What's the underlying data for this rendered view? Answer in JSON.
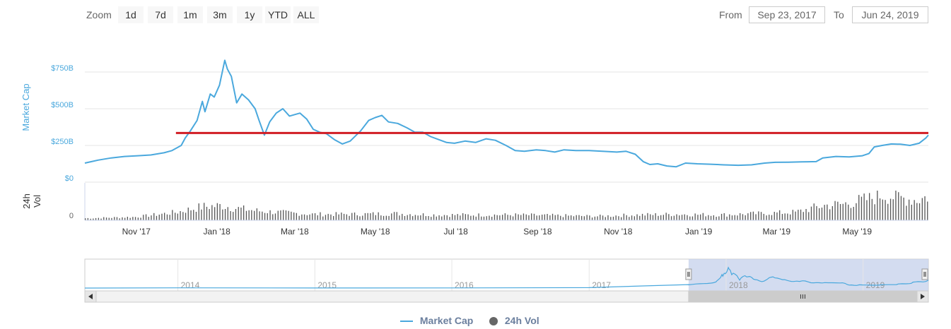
{
  "zoom": {
    "label": "Zoom",
    "buttons": [
      "1d",
      "7d",
      "1m",
      "3m",
      "1y",
      "YTD",
      "ALL"
    ]
  },
  "range": {
    "from_label": "From",
    "from_value": "Sep 23, 2017",
    "to_label": "To",
    "to_value": "Jun 24, 2019"
  },
  "colors": {
    "market_cap": "#4aa8dd",
    "reference_line": "#d11d24",
    "volume": "#555555",
    "navigator_mask": "#c8d3ec",
    "axis_text": "#606060"
  },
  "chart_data": {
    "type": "line",
    "title": "",
    "series": [
      {
        "name": "Market Cap",
        "unit": "USD billions",
        "points": [
          [
            "2017-09-23",
            130
          ],
          [
            "2017-10-03",
            150
          ],
          [
            "2017-10-13",
            165
          ],
          [
            "2017-10-23",
            175
          ],
          [
            "2017-11-02",
            180
          ],
          [
            "2017-11-12",
            185
          ],
          [
            "2017-11-22",
            200
          ],
          [
            "2017-11-28",
            215
          ],
          [
            "2017-12-05",
            250
          ],
          [
            "2017-12-08",
            300
          ],
          [
            "2017-12-12",
            350
          ],
          [
            "2017-12-17",
            420
          ],
          [
            "2017-12-21",
            550
          ],
          [
            "2017-12-23",
            480
          ],
          [
            "2017-12-27",
            600
          ],
          [
            "2017-12-30",
            580
          ],
          [
            "2018-01-03",
            660
          ],
          [
            "2018-01-07",
            830
          ],
          [
            "2018-01-09",
            770
          ],
          [
            "2018-01-12",
            720
          ],
          [
            "2018-01-16",
            540
          ],
          [
            "2018-01-20",
            600
          ],
          [
            "2018-01-25",
            560
          ],
          [
            "2018-01-30",
            500
          ],
          [
            "2018-02-02",
            420
          ],
          [
            "2018-02-06",
            320
          ],
          [
            "2018-02-10",
            410
          ],
          [
            "2018-02-15",
            470
          ],
          [
            "2018-02-20",
            500
          ],
          [
            "2018-02-25",
            450
          ],
          [
            "2018-03-01",
            460
          ],
          [
            "2018-03-05",
            470
          ],
          [
            "2018-03-10",
            430
          ],
          [
            "2018-03-15",
            360
          ],
          [
            "2018-03-20",
            340
          ],
          [
            "2018-03-25",
            330
          ],
          [
            "2018-03-31",
            290
          ],
          [
            "2018-04-06",
            260
          ],
          [
            "2018-04-12",
            280
          ],
          [
            "2018-04-20",
            350
          ],
          [
            "2018-04-26",
            420
          ],
          [
            "2018-05-01",
            440
          ],
          [
            "2018-05-06",
            455
          ],
          [
            "2018-05-11",
            410
          ],
          [
            "2018-05-18",
            400
          ],
          [
            "2018-05-25",
            370
          ],
          [
            "2018-05-31",
            340
          ],
          [
            "2018-06-06",
            340
          ],
          [
            "2018-06-12",
            310
          ],
          [
            "2018-06-18",
            290
          ],
          [
            "2018-06-24",
            270
          ],
          [
            "2018-06-30",
            265
          ],
          [
            "2018-07-08",
            280
          ],
          [
            "2018-07-16",
            270
          ],
          [
            "2018-07-24",
            295
          ],
          [
            "2018-07-31",
            285
          ],
          [
            "2018-08-08",
            250
          ],
          [
            "2018-08-15",
            215
          ],
          [
            "2018-08-22",
            210
          ],
          [
            "2018-08-31",
            220
          ],
          [
            "2018-09-07",
            215
          ],
          [
            "2018-09-14",
            205
          ],
          [
            "2018-09-21",
            220
          ],
          [
            "2018-09-30",
            215
          ],
          [
            "2018-10-10",
            215
          ],
          [
            "2018-10-20",
            210
          ],
          [
            "2018-10-31",
            205
          ],
          [
            "2018-11-07",
            210
          ],
          [
            "2018-11-14",
            190
          ],
          [
            "2018-11-20",
            140
          ],
          [
            "2018-11-25",
            120
          ],
          [
            "2018-12-01",
            125
          ],
          [
            "2018-12-08",
            110
          ],
          [
            "2018-12-15",
            105
          ],
          [
            "2018-12-22",
            130
          ],
          [
            "2018-12-31",
            125
          ],
          [
            "2019-01-10",
            122
          ],
          [
            "2019-01-20",
            118
          ],
          [
            "2019-01-31",
            115
          ],
          [
            "2019-02-10",
            118
          ],
          [
            "2019-02-20",
            130
          ],
          [
            "2019-02-28",
            135
          ],
          [
            "2019-03-10",
            136
          ],
          [
            "2019-03-20",
            138
          ],
          [
            "2019-03-31",
            140
          ],
          [
            "2019-04-05",
            165
          ],
          [
            "2019-04-15",
            175
          ],
          [
            "2019-04-25",
            172
          ],
          [
            "2019-05-05",
            180
          ],
          [
            "2019-05-10",
            195
          ],
          [
            "2019-05-14",
            240
          ],
          [
            "2019-05-20",
            250
          ],
          [
            "2019-05-27",
            260
          ],
          [
            "2019-06-03",
            258
          ],
          [
            "2019-06-10",
            250
          ],
          [
            "2019-06-17",
            265
          ],
          [
            "2019-06-22",
            300
          ],
          [
            "2019-06-24",
            320
          ]
        ]
      },
      {
        "name": "24h Vol",
        "unit": "relative",
        "points": [
          [
            "2017-09-23",
            3
          ],
          [
            "2017-11-01",
            5
          ],
          [
            "2017-12-01",
            12
          ],
          [
            "2017-12-20",
            20
          ],
          [
            "2018-01-05",
            22
          ],
          [
            "2018-01-15",
            18
          ],
          [
            "2018-02-01",
            14
          ],
          [
            "2018-02-15",
            12
          ],
          [
            "2018-03-15",
            9
          ],
          [
            "2018-04-15",
            9
          ],
          [
            "2018-05-15",
            10
          ],
          [
            "2018-06-15",
            8
          ],
          [
            "2018-07-15",
            8
          ],
          [
            "2018-08-15",
            8
          ],
          [
            "2018-09-15",
            7
          ],
          [
            "2018-10-15",
            6
          ],
          [
            "2018-11-15",
            8
          ],
          [
            "2018-12-15",
            9
          ],
          [
            "2019-01-15",
            8
          ],
          [
            "2019-02-15",
            10
          ],
          [
            "2019-03-15",
            12
          ],
          [
            "2019-04-05",
            22
          ],
          [
            "2019-04-20",
            24
          ],
          [
            "2019-05-10",
            32
          ],
          [
            "2019-05-20",
            38
          ],
          [
            "2019-06-01",
            34
          ],
          [
            "2019-06-15",
            30
          ],
          [
            "2019-06-24",
            36
          ]
        ]
      }
    ],
    "y_axis": {
      "title": "Market Cap",
      "ticks": [
        "$0",
        "$250B",
        "$500B",
        "$750B"
      ],
      "tick_values": [
        0,
        250,
        500,
        750
      ],
      "ylim": [
        0,
        850
      ]
    },
    "volume_axis": {
      "title_line1": "24h",
      "title_line2": "Vol",
      "ticks": [
        "0"
      ]
    },
    "x_axis": {
      "ticks": [
        "Nov '17",
        "Jan '18",
        "Mar '18",
        "May '18",
        "Jul '18",
        "Sep '18",
        "Nov '18",
        "Jan '19",
        "Mar '19",
        "May '19"
      ],
      "tick_dates": [
        "2017-11-01",
        "2018-01-01",
        "2018-03-01",
        "2018-05-01",
        "2018-07-01",
        "2018-09-01",
        "2018-11-01",
        "2019-01-01",
        "2019-03-01",
        "2019-05-01"
      ],
      "range": [
        "2017-09-23",
        "2019-06-24"
      ]
    },
    "reference_line": {
      "value": 335,
      "start": "2017-12-01",
      "end": "2019-06-24"
    },
    "navigator": {
      "ticks": [
        "2014",
        "2015",
        "2016",
        "2017",
        "2018",
        "2019"
      ],
      "tick_dates": [
        "2014-01-01",
        "2015-01-01",
        "2016-01-01",
        "2017-01-01",
        "2018-01-01",
        "2019-01-01"
      ],
      "range": [
        "2013-04-28",
        "2019-06-24"
      ],
      "selected": [
        "2017-09-23",
        "2019-06-24"
      ]
    },
    "legend": [
      "Market Cap",
      "24h Vol"
    ],
    "legend_position": "bottom-center",
    "grid": true
  }
}
